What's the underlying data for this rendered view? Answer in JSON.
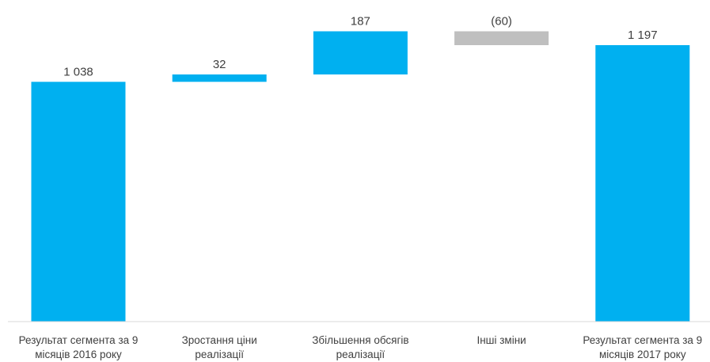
{
  "chart_data": {
    "type": "bar",
    "subtype": "waterfall",
    "categories": [
      [
        "Результат сегмента за 9",
        "місяців 2016 року"
      ],
      [
        "Зростання ціни",
        "реалізації"
      ],
      [
        "Збільшення обсягів",
        "реалізації"
      ],
      [
        "Інші зміни"
      ],
      [
        "Результат сегмента за 9",
        "місяців 2017 року"
      ]
    ],
    "values": [
      1038,
      32,
      187,
      -60,
      1197
    ],
    "value_labels": [
      "1 038",
      "32",
      "187",
      "(60)",
      "1 197"
    ],
    "kinds": [
      "total",
      "delta",
      "delta",
      "delta",
      "total"
    ],
    "ylim": [
      0,
      1300
    ],
    "grid": false,
    "legend": "none",
    "colors": {
      "total": "#00B0F0",
      "increase": "#00B0F0",
      "decrease": "#BFBFBF",
      "axis": "#D9D9D9",
      "text": "#404040"
    }
  }
}
